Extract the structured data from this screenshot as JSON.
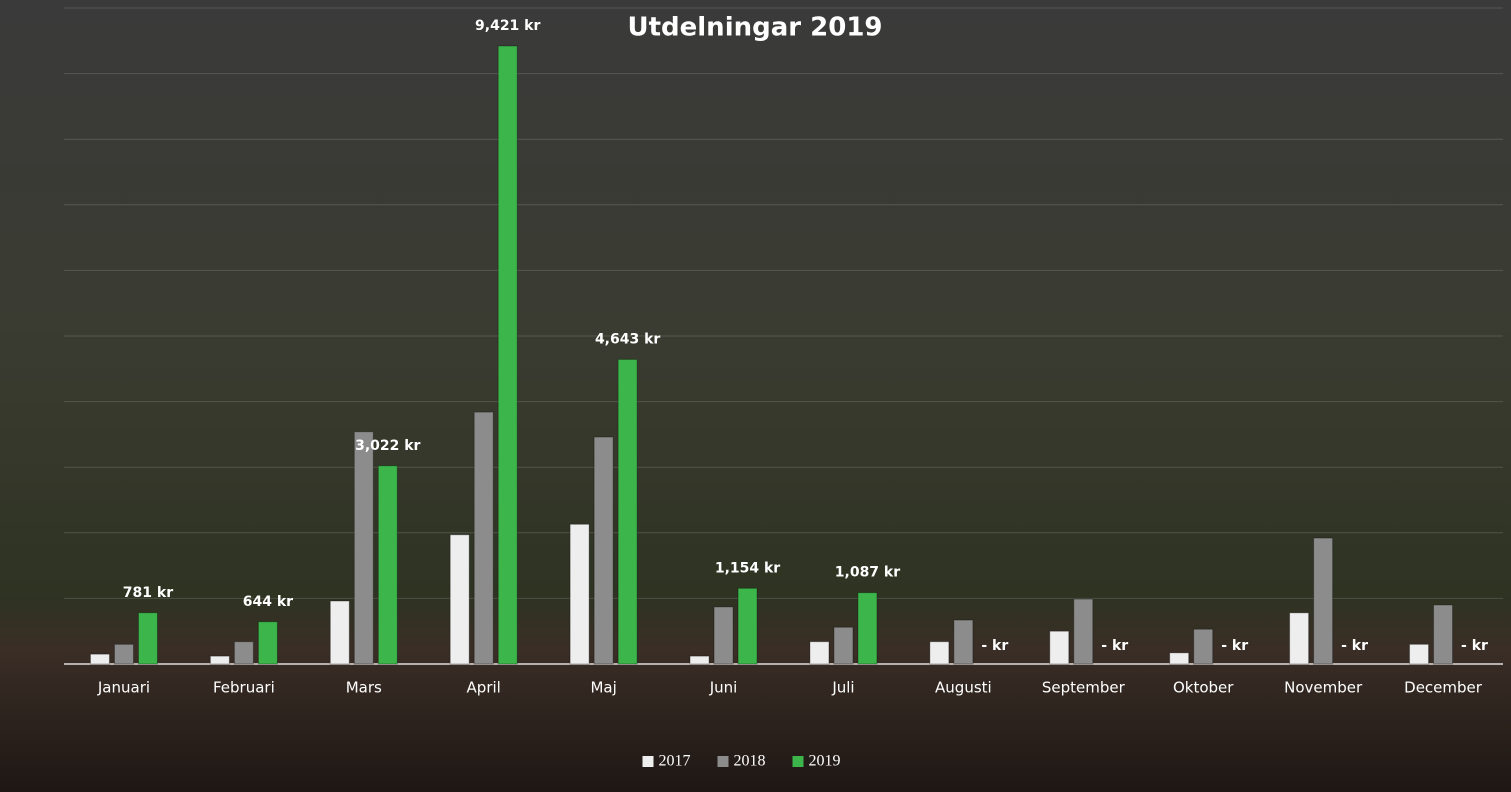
{
  "chart_data": {
    "type": "bar",
    "title": "Utdelningar 2019",
    "categories": [
      "Januari",
      "Februari",
      "Mars",
      "April",
      "Maj",
      "Juni",
      "Juli",
      "Augusti",
      "September",
      "Oktober",
      "November",
      "December"
    ],
    "series": [
      {
        "name": "2017",
        "color": "#eeeeee",
        "values": [
          150,
          120,
          960,
          1970,
          2130,
          120,
          340,
          340,
          500,
          170,
          780,
          300
        ]
      },
      {
        "name": "2018",
        "color": "#8c8c8c",
        "values": [
          300,
          340,
          3540,
          3840,
          3460,
          870,
          560,
          670,
          990,
          530,
          1920,
          900
        ]
      },
      {
        "name": "2019",
        "color": "#3cb54a",
        "values": [
          781,
          644,
          3022,
          9421,
          4643,
          1154,
          1087,
          0,
          0,
          0,
          0,
          0
        ],
        "value_labels": [
          "781 kr",
          "644 kr",
          "3,022 kr",
          "9,421 kr",
          "4,643 kr",
          "1,154 kr",
          "1,087 kr",
          "-  kr",
          "-  kr",
          "-  kr",
          "-  kr",
          "-  kr"
        ]
      }
    ],
    "ylim": [
      0,
      10000
    ],
    "yticks": [
      0,
      1000,
      2000,
      3000,
      4000,
      5000,
      6000,
      7000,
      8000,
      9000,
      10000
    ],
    "grid": true,
    "legend": "bottom"
  }
}
